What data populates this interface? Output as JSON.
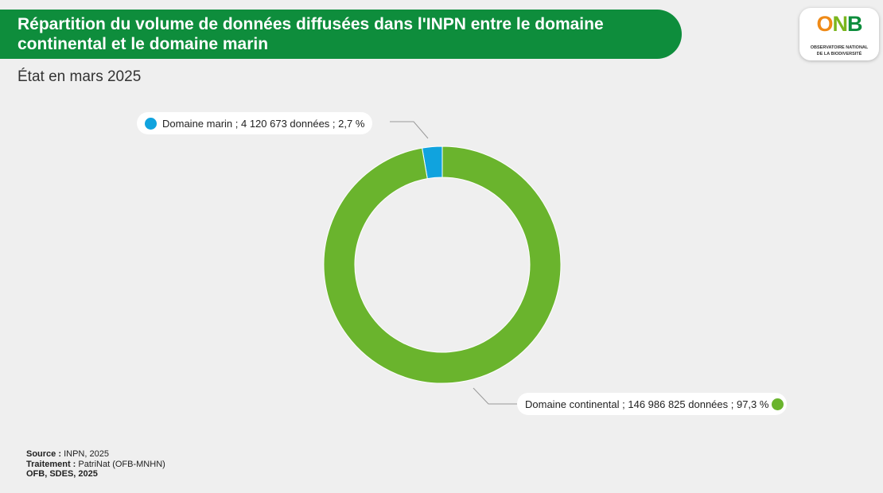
{
  "header": {
    "title": "Répartition du volume de données diffusées dans l'INPN entre le domaine continental et le domaine marin",
    "subtitle": "État en mars 2025"
  },
  "logo": {
    "mark": "ONB",
    "line1": "OBSERVATOIRE NATIONAL",
    "line2": "DE LA BIODIVERSITÉ"
  },
  "chart_data": {
    "type": "pie",
    "variant": "donut",
    "categories": [
      "Domaine marin",
      "Domaine continental"
    ],
    "values": [
      4120673,
      146986825
    ],
    "percentages": [
      2.7,
      97.3
    ],
    "labels": [
      "Domaine marin ; 4 120 673 données ; 2,7 %",
      "Domaine continental ; 146 986 825 données ; 97,3 %"
    ],
    "colors": [
      "#10a3de",
      "#6ab42d"
    ],
    "title": "Répartition du volume de données diffusées dans l'INPN entre le domaine continental et le domaine marin",
    "subtitle": "État en mars 2025",
    "legend": "callout-labels"
  },
  "footer": {
    "source_label": "Source :",
    "source_value": " INPN, 2025",
    "treatment_label": "Traitement :",
    "treatment_value": " PatriNat (OFB-MNHN)",
    "credits": "OFB, SDES, 2025"
  }
}
